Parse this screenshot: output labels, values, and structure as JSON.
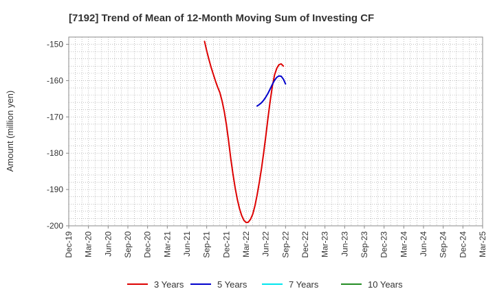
{
  "chart_data": {
    "type": "line",
    "title": "[7192]  Trend of Mean of 12-Month Moving Sum of Investing CF",
    "xlabel": "",
    "ylabel": "Amount (million yen)",
    "ylim": [
      -200,
      -148
    ],
    "yticks": [
      -150,
      -160,
      -170,
      -180,
      -190,
      -200
    ],
    "ytick_labels": [
      "-150",
      "-160",
      "-170",
      "-180",
      "-190",
      "-200"
    ],
    "categories": [
      "Dec-19",
      "Mar-20",
      "Jun-20",
      "Sep-20",
      "Dec-20",
      "Mar-21",
      "Jun-21",
      "Sep-21",
      "Dec-21",
      "Mar-22",
      "Jun-22",
      "Sep-22",
      "Dec-22",
      "Mar-23",
      "Jun-23",
      "Sep-23",
      "Dec-23",
      "Mar-24",
      "Jun-24",
      "Sep-24",
      "Dec-24",
      "Mar-25"
    ],
    "grid": true,
    "legend_position": "bottom",
    "series": [
      {
        "name": "3 Years",
        "color": "#dd0000",
        "points": [
          {
            "x": 20.667,
            "y": -149.2
          },
          {
            "x": 21,
            "y": -151.8
          },
          {
            "x": 21.333,
            "y": -154.1
          },
          {
            "x": 21.667,
            "y": -156.3
          },
          {
            "x": 22,
            "y": -158.2
          },
          {
            "x": 22.333,
            "y": -160.1
          },
          {
            "x": 22.667,
            "y": -161.8
          },
          {
            "x": 23,
            "y": -163.3
          },
          {
            "x": 23.333,
            "y": -165.6
          },
          {
            "x": 23.667,
            "y": -168.5
          },
          {
            "x": 24,
            "y": -172.1
          },
          {
            "x": 24.333,
            "y": -176.6
          },
          {
            "x": 24.667,
            "y": -181.5
          },
          {
            "x": 25,
            "y": -185.8
          },
          {
            "x": 25.333,
            "y": -189.6
          },
          {
            "x": 25.667,
            "y": -192.8
          },
          {
            "x": 26,
            "y": -195.3
          },
          {
            "x": 26.333,
            "y": -197.2
          },
          {
            "x": 26.667,
            "y": -198.5
          },
          {
            "x": 27,
            "y": -199.1
          },
          {
            "x": 27.333,
            "y": -199.0
          },
          {
            "x": 27.667,
            "y": -198.2
          },
          {
            "x": 28,
            "y": -196.8
          },
          {
            "x": 28.333,
            "y": -194.6
          },
          {
            "x": 28.667,
            "y": -191.6
          },
          {
            "x": 29,
            "y": -188.1
          },
          {
            "x": 29.333,
            "y": -184.3
          },
          {
            "x": 29.667,
            "y": -179.9
          },
          {
            "x": 30,
            "y": -175.2
          },
          {
            "x": 30.333,
            "y": -170.3
          },
          {
            "x": 30.667,
            "y": -165.6
          },
          {
            "x": 31,
            "y": -161.5
          },
          {
            "x": 31.333,
            "y": -158.4
          },
          {
            "x": 31.667,
            "y": -156.6
          },
          {
            "x": 32,
            "y": -155.6
          },
          {
            "x": 32.333,
            "y": -155.4
          },
          {
            "x": 32.667,
            "y": -156.0
          }
        ]
      },
      {
        "name": "5 Years",
        "color": "#0000cc",
        "points": [
          {
            "x": 28.667,
            "y": -167.0
          },
          {
            "x": 29,
            "y": -166.6
          },
          {
            "x": 29.333,
            "y": -166.1
          },
          {
            "x": 29.667,
            "y": -165.4
          },
          {
            "x": 30,
            "y": -164.5
          },
          {
            "x": 30.333,
            "y": -163.5
          },
          {
            "x": 30.667,
            "y": -162.3
          },
          {
            "x": 31,
            "y": -161.0
          },
          {
            "x": 31.333,
            "y": -159.9
          },
          {
            "x": 31.667,
            "y": -159.1
          },
          {
            "x": 32,
            "y": -158.7
          },
          {
            "x": 32.333,
            "y": -158.8
          },
          {
            "x": 32.667,
            "y": -159.6
          },
          {
            "x": 33,
            "y": -160.9
          }
        ]
      },
      {
        "name": "7 Years",
        "color": "#00e5ee",
        "points": []
      },
      {
        "name": "10 Years",
        "color": "#228b22",
        "points": []
      }
    ]
  }
}
